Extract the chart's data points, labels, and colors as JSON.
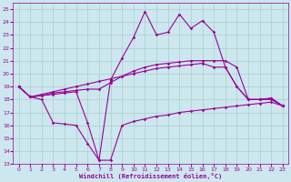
{
  "bg_color": "#cce8ee",
  "grid_color": "#aacccc",
  "line_color": "#990099",
  "xlabel": "Windchill (Refroidissement éolien,°C)",
  "x_values": [
    0,
    1,
    2,
    3,
    4,
    5,
    6,
    7,
    8,
    9,
    10,
    11,
    12,
    13,
    14,
    15,
    16,
    17,
    18,
    19,
    20,
    21,
    22,
    23
  ],
  "ylim": [
    13,
    25.5
  ],
  "yticks": [
    13,
    14,
    15,
    16,
    17,
    18,
    19,
    20,
    21,
    22,
    23,
    24,
    25
  ],
  "series": [
    [
      19.0,
      18.2,
      18.0,
      16.2,
      16.1,
      16.0,
      14.6,
      13.3,
      13.3,
      16.0,
      16.3,
      16.5,
      16.7,
      16.8,
      17.0,
      17.1,
      17.2,
      17.3,
      17.4,
      17.5,
      17.6,
      17.7,
      17.8,
      17.5
    ],
    [
      19.0,
      18.2,
      18.3,
      18.5,
      18.6,
      18.7,
      18.8,
      18.8,
      19.3,
      19.8,
      20.2,
      20.5,
      20.7,
      20.8,
      20.9,
      21.0,
      21.0,
      21.0,
      21.0,
      20.5,
      18.0,
      18.0,
      18.0,
      17.5
    ],
    [
      19.0,
      18.2,
      18.4,
      18.6,
      18.8,
      19.0,
      19.2,
      19.4,
      19.6,
      19.8,
      20.0,
      20.2,
      20.4,
      20.5,
      20.6,
      20.7,
      20.8,
      20.5,
      20.5,
      19.0,
      18.0,
      18.0,
      18.1,
      17.5
    ],
    [
      19.0,
      18.2,
      18.3,
      18.4,
      18.5,
      18.6,
      16.2,
      13.3,
      19.5,
      21.2,
      22.8,
      24.8,
      23.0,
      23.2,
      24.6,
      23.5,
      24.1,
      23.2,
      20.5,
      19.0,
      18.0,
      18.0,
      18.1,
      17.5
    ]
  ]
}
